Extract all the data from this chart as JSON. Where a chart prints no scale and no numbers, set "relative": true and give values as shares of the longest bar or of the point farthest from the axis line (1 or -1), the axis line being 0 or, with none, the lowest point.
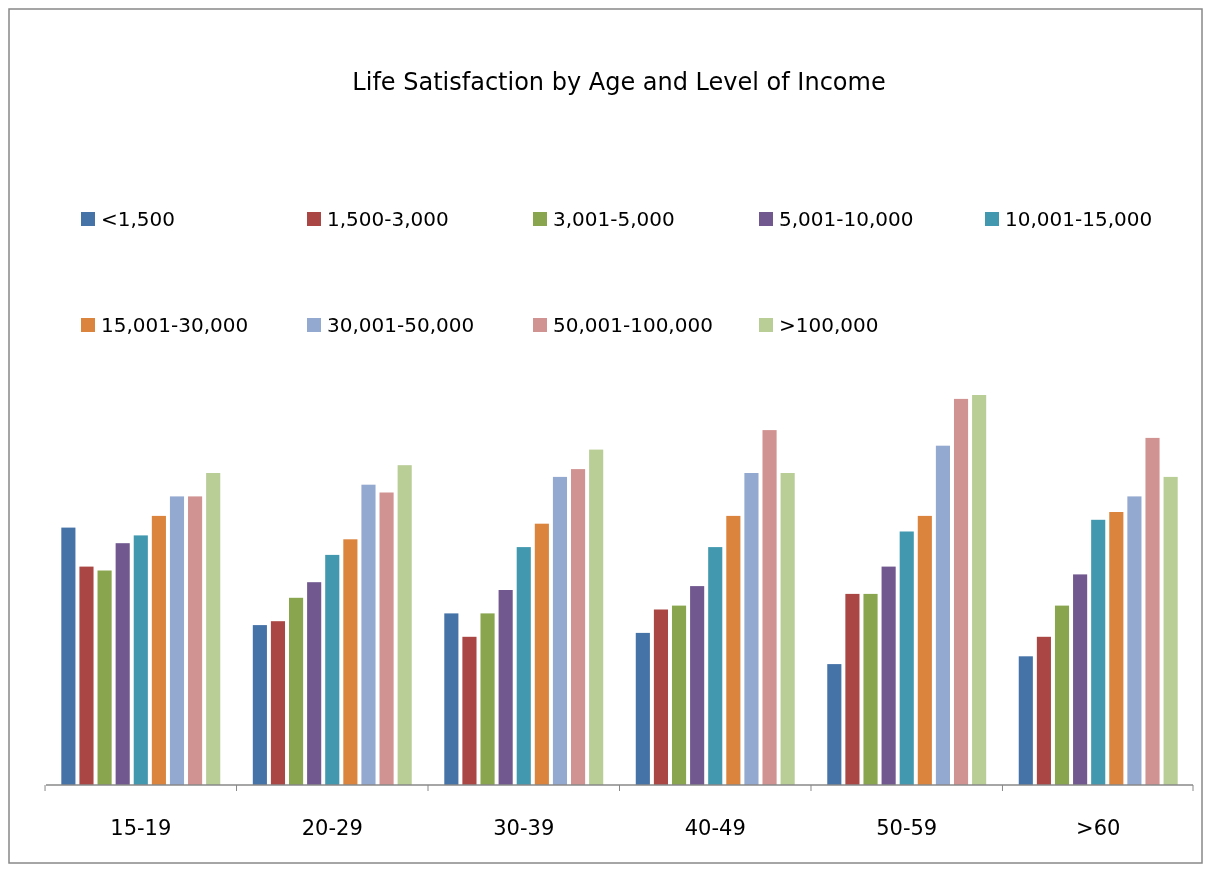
{
  "chart_data": {
    "type": "bar",
    "title": "Life Satisfaction by Age and Level of Income",
    "relative": true,
    "legend": "top",
    "categories": [
      "15-19",
      "20-29",
      "30-39",
      "40-49",
      "50-59",
      ">60"
    ],
    "series": [
      {
        "name": "<1,500",
        "color": "#4572a7",
        "values": [
          0.66,
          0.41,
          0.44,
          0.39,
          0.31,
          0.33
        ]
      },
      {
        "name": "1,500-3,000",
        "color": "#aa4643",
        "values": [
          0.56,
          0.42,
          0.38,
          0.45,
          0.49,
          0.38
        ]
      },
      {
        "name": "3,001-5,000",
        "color": "#89a54e",
        "values": [
          0.55,
          0.48,
          0.44,
          0.46,
          0.49,
          0.46
        ]
      },
      {
        "name": "5,001-10,000",
        "color": "#71588f",
        "values": [
          0.62,
          0.52,
          0.5,
          0.51,
          0.56,
          0.54
        ]
      },
      {
        "name": "10,001-15,000",
        "color": "#4198af",
        "values": [
          0.64,
          0.59,
          0.61,
          0.61,
          0.65,
          0.68
        ]
      },
      {
        "name": "15,001-30,000",
        "color": "#db843d",
        "values": [
          0.69,
          0.63,
          0.67,
          0.69,
          0.69,
          0.7
        ]
      },
      {
        "name": "30,001-50,000",
        "color": "#93a9cf",
        "values": [
          0.74,
          0.77,
          0.79,
          0.8,
          0.87,
          0.74
        ]
      },
      {
        "name": "50,001-100,000",
        "color": "#d19392",
        "values": [
          0.74,
          0.75,
          0.81,
          0.91,
          0.99,
          0.89
        ]
      },
      {
        "name": ">100,000",
        "color": "#b9cd96",
        "values": [
          0.8,
          0.82,
          0.86,
          0.8,
          1,
          0.79
        ]
      }
    ]
  }
}
